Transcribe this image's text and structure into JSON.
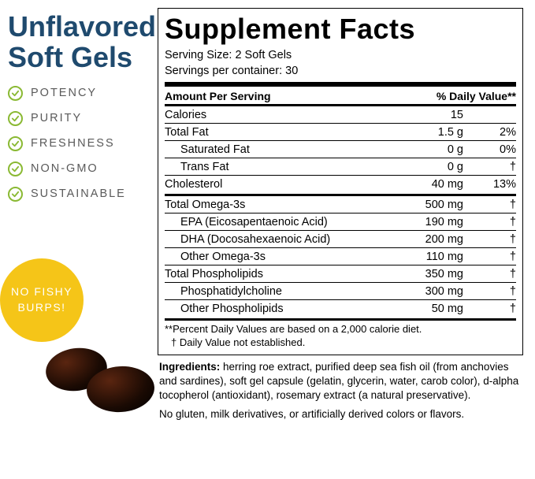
{
  "left": {
    "title_l1": "Unflavored",
    "title_l2": "Soft Gels",
    "features": [
      "POTENCY",
      "PURITY",
      "FRESHNESS",
      "NON-GMO",
      "SUSTAINABLE"
    ],
    "check_color": "#8ab933",
    "badge_bg": "#f5c518",
    "badge_l1": "NO FISHY",
    "badge_l2": "BURPS!"
  },
  "facts": {
    "title": "Supplement Facts",
    "serving_size": "Serving Size: 2 Soft Gels",
    "servings_per": "Servings per container: 30",
    "header_left": "Amount Per Serving",
    "header_right": "% Daily Value**",
    "rows1": [
      {
        "name": "Calories",
        "amt": "15",
        "dv": "",
        "indent": 0
      },
      {
        "name": "Total Fat",
        "amt": "1.5 g",
        "dv": "2%",
        "indent": 0
      },
      {
        "name": "Saturated Fat",
        "amt": "0 g",
        "dv": "0%",
        "indent": 1
      },
      {
        "name": "Trans Fat",
        "amt": "0 g",
        "dv": "†",
        "indent": 1
      },
      {
        "name": "Cholesterol",
        "amt": "40 mg",
        "dv": "13%",
        "indent": 0
      }
    ],
    "rows2": [
      {
        "name": "Total Omega-3s",
        "amt": "500 mg",
        "dv": "†",
        "indent": 0
      },
      {
        "name": "EPA (Eicosapentaenoic Acid)",
        "amt": "190 mg",
        "dv": "†",
        "indent": 1
      },
      {
        "name": "DHA (Docosahexaenoic Acid)",
        "amt": "200 mg",
        "dv": "†",
        "indent": 1
      },
      {
        "name": "Other Omega-3s",
        "amt": "110 mg",
        "dv": "†",
        "indent": 1
      },
      {
        "name": "Total Phospholipids",
        "amt": "350 mg",
        "dv": "†",
        "indent": 0
      },
      {
        "name": "Phosphatidylcholine",
        "amt": "300 mg",
        "dv": "†",
        "indent": 1
      },
      {
        "name": "Other Phospholipids",
        "amt": "50 mg",
        "dv": "†",
        "indent": 1
      }
    ],
    "footnote1": "**Percent Daily Values are based on a 2,000 calorie diet.",
    "footnote2": "† Daily Value not established."
  },
  "ingredients_label": "Ingredients:",
  "ingredients_text": " herring roe extract, purified deep sea fish oil (from anchovies and sardines), soft gel capsule (gelatin, glycerin, water, carob color), d-alpha tocopherol (antioxidant), rosemary extract (a natural preservative).",
  "no_gluten": "No gluten, milk derivatives, or artificially derived colors or flavors."
}
